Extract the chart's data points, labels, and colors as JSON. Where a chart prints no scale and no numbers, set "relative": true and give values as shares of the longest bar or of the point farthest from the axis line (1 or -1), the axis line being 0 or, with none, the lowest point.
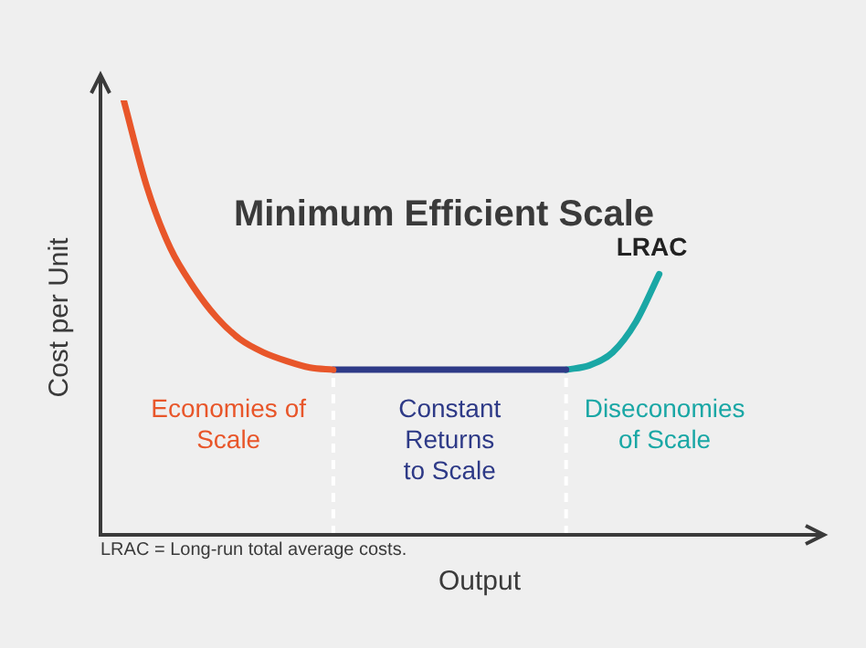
{
  "chart_data": {
    "type": "line",
    "title": "Minimum Efficient Scale",
    "xlabel": "Output",
    "ylabel": "Cost per Unit",
    "relative": true,
    "legend": false,
    "marker": "none",
    "categories": [
      null,
      null,
      null,
      null,
      null,
      null,
      null,
      null,
      null,
      null,
      null,
      null,
      null,
      null,
      null,
      null,
      null,
      null,
      null,
      null,
      null,
      null,
      null,
      null,
      null,
      null,
      null,
      null,
      null,
      null,
      null,
      null
    ],
    "series": [
      {
        "color": "#e8562a",
        "values": [
          null,
          1.0,
          0.8,
          0.66,
          0.57,
          0.5,
          0.45,
          0.42,
          0.4,
          0.385,
          0.38,
          null,
          null,
          null,
          null,
          null,
          null,
          null,
          null,
          null,
          null,
          null,
          null,
          null,
          null,
          null,
          null,
          null,
          null,
          null,
          null,
          null
        ]
      },
      {
        "color": "#2e3a87",
        "values": [
          null,
          null,
          null,
          null,
          null,
          null,
          null,
          null,
          null,
          null,
          0.38,
          0.38,
          0.38,
          0.38,
          0.38,
          0.38,
          0.38,
          0.38,
          0.38,
          0.38,
          0.38,
          null,
          null,
          null,
          null,
          null,
          null,
          null,
          null,
          null,
          null,
          null
        ]
      },
      {
        "name": "LRAC",
        "color": "#1aa7a5",
        "values": [
          null,
          null,
          null,
          null,
          null,
          null,
          null,
          null,
          null,
          null,
          null,
          null,
          null,
          null,
          null,
          null,
          null,
          null,
          null,
          null,
          0.38,
          0.39,
          0.42,
          0.49,
          0.6,
          null,
          null,
          null,
          null,
          null,
          null,
          null
        ]
      }
    ],
    "annotations": [
      "Economies of Scale",
      "Constant Returns to Scale",
      "Diseconomies of Scale",
      "LRAC = Long-run total average costs."
    ]
  }
}
